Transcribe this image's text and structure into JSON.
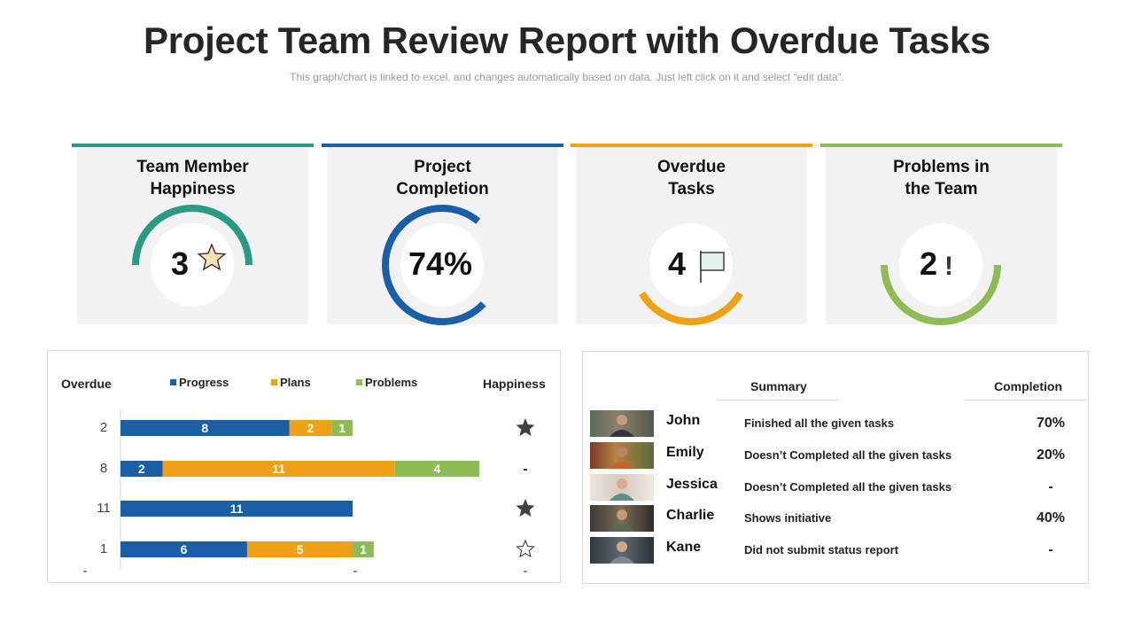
{
  "header": {
    "title": "Project Team Review Report with Overdue Tasks",
    "subtitle": "This graph/chart is linked to excel, and changes automatically based on data. Just left click on it and select “edit data”."
  },
  "kpis": [
    {
      "title_line1": "Team Member",
      "title_line2": "Happiness",
      "value": "3",
      "icon": "star-icon",
      "color": "#2a9a85"
    },
    {
      "title_line1": "Project",
      "title_line2": "Completion",
      "value": "74%",
      "percent": 74,
      "color": "#1b5ea8"
    },
    {
      "title_line1": "Overdue",
      "title_line2": "Tasks",
      "value": "4",
      "icon": "flag-icon",
      "color": "#efa014"
    },
    {
      "title_line1": "Problems in",
      "title_line2": "the Team",
      "value": "2",
      "icon": "exclamation-icon",
      "icon_text": "!",
      "color": "#8fbb55"
    }
  ],
  "chart_data": {
    "type": "bar",
    "orientation": "horizontal",
    "stacked": true,
    "left_header": "Overdue",
    "right_header": "Happiness",
    "categories": [
      "2",
      "8",
      "11",
      "1"
    ],
    "series": [
      {
        "name": "Progress",
        "color": "#1b5ea8",
        "values": [
          8,
          2,
          11,
          6
        ]
      },
      {
        "name": "Plans",
        "color": "#efa014",
        "values": [
          2,
          11,
          0,
          5
        ]
      },
      {
        "name": "Problems",
        "color": "#8fbb55",
        "values": [
          1,
          4,
          0,
          1
        ]
      }
    ],
    "happiness": [
      "star-filled",
      "-",
      "star-filled",
      "star-outline"
    ],
    "bottom_labels": [
      "-",
      "-",
      "-"
    ],
    "xlim": [
      0,
      17
    ],
    "legend_position": "top"
  },
  "team": {
    "summary_header": "Summary",
    "completion_header": "Completion",
    "members": [
      {
        "name": "John",
        "summary": "Finished all the given tasks",
        "completion": "70%"
      },
      {
        "name": "Emily",
        "summary": "Doesn’t Completed all the given tasks",
        "completion": "20%"
      },
      {
        "name": "Jessica",
        "summary": "Doesn’t Completed all the given tasks",
        "completion": "-"
      },
      {
        "name": "Charlie",
        "summary": "Shows initiative",
        "completion": "40%"
      },
      {
        "name": "Kane",
        "summary": "Did not submit status report",
        "completion": "-"
      }
    ]
  }
}
